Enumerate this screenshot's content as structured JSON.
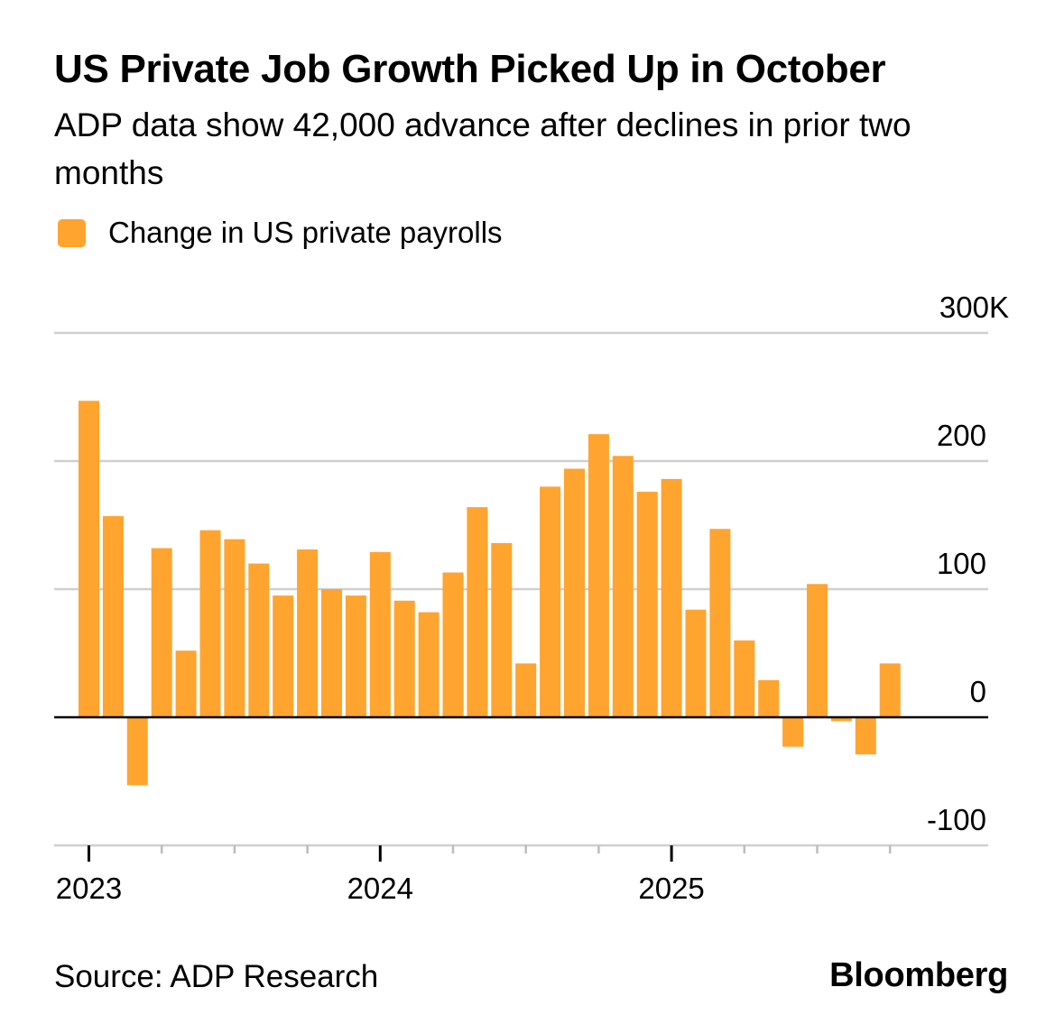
{
  "header": {
    "title": "US Private Job Growth Picked Up in October",
    "subtitle": "ADP data show 42,000 advance after declines in prior two months"
  },
  "legend": {
    "label": "Change in US private payrolls",
    "color": "#ffa42f"
  },
  "footer": {
    "source": "Source: ADP Research",
    "brand": "Bloomberg"
  },
  "chart_data": {
    "type": "bar",
    "title": "US Private Job Growth Picked Up in October",
    "xlabel": "",
    "ylabel": "Change in US private payrolls",
    "ylim": [
      -100,
      300
    ],
    "y_ticks": [
      -100,
      0,
      100,
      200,
      300
    ],
    "y_tick_labels": [
      "-100",
      "0",
      "100",
      "200",
      "300K"
    ],
    "x_tick_labels": [
      {
        "label": "2023",
        "index": 0
      },
      {
        "label": "2024",
        "index": 12
      },
      {
        "label": "2025",
        "index": 24
      }
    ],
    "grid": true,
    "legend_position": "top-left",
    "categories": [
      "Jan 2023",
      "Feb 2023",
      "Mar 2023",
      "Apr 2023",
      "May 2023",
      "Jun 2023",
      "Jul 2023",
      "Aug 2023",
      "Sep 2023",
      "Oct 2023",
      "Nov 2023",
      "Dec 2023",
      "Jan 2024",
      "Feb 2024",
      "Mar 2024",
      "Apr 2024",
      "May 2024",
      "Jun 2024",
      "Jul 2024",
      "Aug 2024",
      "Sep 2024",
      "Oct 2024",
      "Nov 2024",
      "Dec 2024",
      "Jan 2025",
      "Feb 2025",
      "Mar 2025",
      "Apr 2025",
      "May 2025",
      "Jun 2025",
      "Jul 2025",
      "Aug 2025",
      "Sep 2025",
      "Oct 2025"
    ],
    "series": [
      {
        "name": "Change in US private payrolls",
        "color": "#ffa42f",
        "values": [
          247,
          157,
          -53,
          132,
          52,
          146,
          139,
          120,
          95,
          131,
          100,
          95,
          129,
          91,
          82,
          113,
          164,
          136,
          42,
          180,
          194,
          221,
          204,
          176,
          186,
          84,
          147,
          60,
          29,
          -23,
          104,
          -3,
          -29,
          42
        ]
      }
    ]
  }
}
